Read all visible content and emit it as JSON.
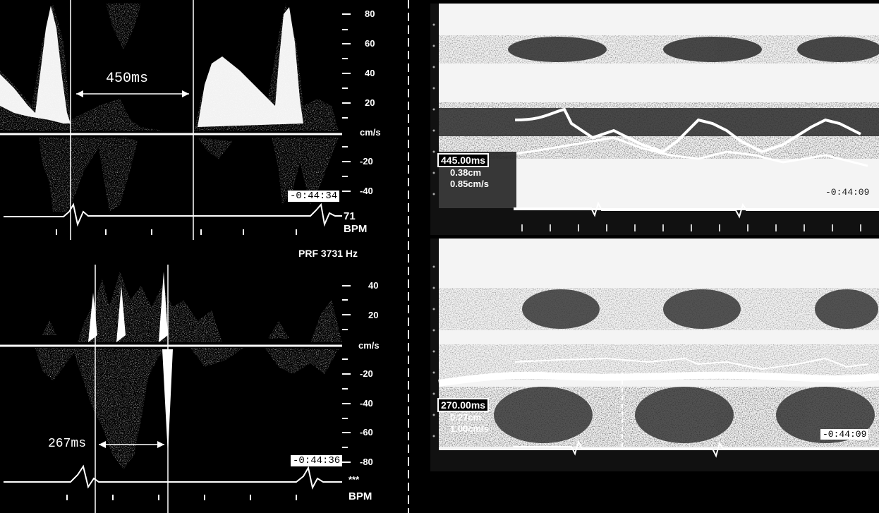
{
  "doppler_top": {
    "interval": "450ms",
    "scale": [
      "80",
      "60",
      "40",
      "20",
      "cm/s",
      "-20",
      "-40"
    ],
    "time": "-0:44:34",
    "hr_value": "71",
    "hr_unit": "BPM"
  },
  "doppler_bottom": {
    "prf": "PRF 3731 Hz",
    "interval": "267ms",
    "scale": [
      "40",
      "20",
      "cm/s",
      "-20",
      "-40",
      "-60",
      "-80"
    ],
    "time": "-0:44:36",
    "hr_value": "***",
    "hr_unit": "BPM"
  },
  "mmode_top": {
    "time_measure": "445.00ms",
    "distance": "0.38cm",
    "velocity": "0.85cm/s",
    "time": "-0:44:09"
  },
  "mmode_bottom": {
    "time_measure": "270.00ms",
    "distance": "0.27cm",
    "velocity": "1.00cm/s",
    "time": "-0:44:09"
  }
}
